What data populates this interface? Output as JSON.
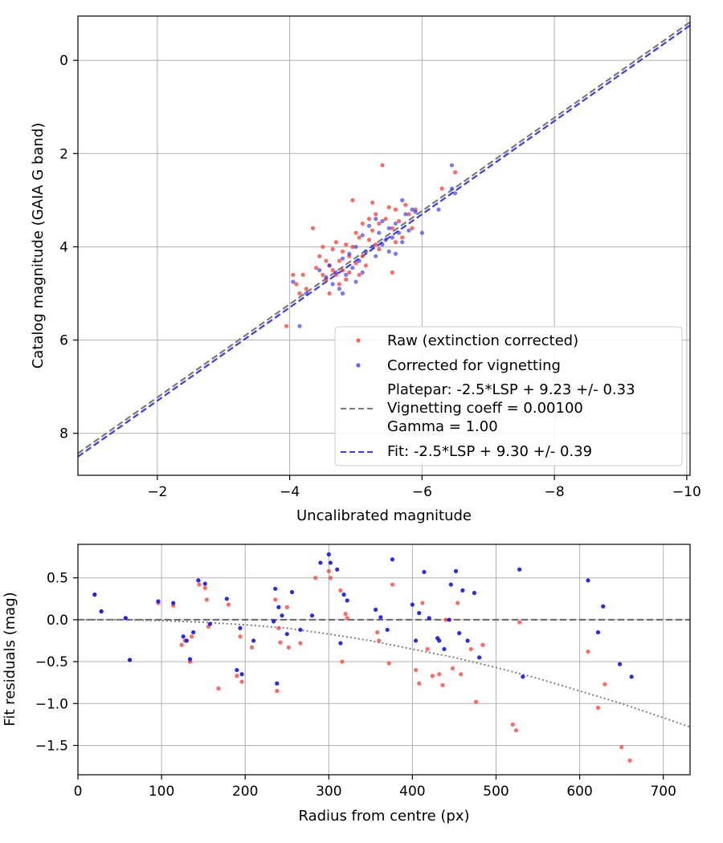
{
  "chart_data": [
    {
      "type": "scatter",
      "xlabel": "Uncalibrated magnitude",
      "ylabel": "Catalog magnitude (GAIA G band)",
      "xlim": [
        -0.8,
        -10.05
      ],
      "ylim": [
        8.9,
        -0.95
      ],
      "xticks": [
        -2,
        -4,
        -6,
        -8,
        -10
      ],
      "xtick_labels": [
        "−2",
        "−4",
        "−6",
        "−8",
        "−10"
      ],
      "yticks": [
        0,
        2,
        4,
        6,
        8
      ],
      "yticks_labels": [
        "0",
        "2",
        "4",
        "6",
        "8"
      ],
      "grid": true,
      "legend_position": "lower-right",
      "colors": {
        "raw": "#ff3b30",
        "corrected": "#2020ff",
        "platepar": "#7a7a7a",
        "fit": "#3a3aff"
      },
      "legend": {
        "raw": "Raw (extinction corrected)",
        "corrected": "Corrected for vignetting",
        "platepar_lines": [
          "Platepar: -2.5*LSP + 9.23 +/- 0.33",
          "Vignetting coeff = 0.00100",
          "Gamma = 1.00"
        ],
        "fit": "Fit: -2.5*LSP + 9.30 +/- 0.39"
      },
      "series": [
        {
          "name": "Platepar",
          "kind": "dashed-line",
          "slope": 1.0,
          "intercept": 9.23
        },
        {
          "name": "Fit",
          "kind": "dashed-line",
          "slope": 1.0,
          "intercept": 9.3
        },
        {
          "name": "Raw (extinction corrected)",
          "kind": "points",
          "x": [
            -3.95,
            -4.05,
            -4.1,
            -4.15,
            -4.2,
            -4.25,
            -4.35,
            -4.4,
            -4.45,
            -4.5,
            -4.5,
            -4.55,
            -4.55,
            -4.6,
            -4.6,
            -4.65,
            -4.65,
            -4.7,
            -4.7,
            -4.75,
            -4.75,
            -4.8,
            -4.8,
            -4.85,
            -4.85,
            -4.9,
            -4.9,
            -4.95,
            -4.95,
            -5.0,
            -5.0,
            -5.05,
            -5.05,
            -5.1,
            -5.1,
            -5.15,
            -5.2,
            -5.2,
            -5.25,
            -5.25,
            -5.3,
            -5.3,
            -5.35,
            -5.35,
            -5.4,
            -5.45,
            -5.5,
            -5.55,
            -5.6,
            -5.6,
            -5.65,
            -5.7,
            -5.75,
            -5.8,
            -5.85,
            -5.9,
            -6.3,
            -6.5,
            -5.55
          ],
          "y": [
            5.7,
            4.6,
            4.8,
            5.0,
            4.6,
            4.9,
            3.6,
            4.45,
            4.2,
            4.0,
            4.6,
            4.7,
            4.3,
            4.4,
            5.0,
            4.05,
            4.5,
            3.9,
            4.6,
            4.3,
            4.8,
            4.1,
            4.5,
            3.95,
            4.7,
            4.2,
            4.55,
            3.0,
            4.0,
            4.35,
            3.7,
            3.8,
            4.6,
            3.5,
            4.2,
            4.4,
            3.4,
            3.85,
            3.05,
            3.65,
            3.3,
            3.95,
            3.5,
            4.05,
            2.25,
            3.4,
            3.15,
            3.6,
            3.9,
            3.2,
            3.45,
            3.8,
            3.1,
            3.3,
            3.6,
            3.2,
            2.75,
            2.4,
            4.55
          ]
        },
        {
          "name": "Corrected for vignetting",
          "kind": "points",
          "x": [
            -4.05,
            -4.15,
            -4.25,
            -4.45,
            -4.55,
            -4.6,
            -4.65,
            -4.7,
            -4.75,
            -4.8,
            -4.8,
            -4.85,
            -4.9,
            -4.95,
            -5.0,
            -5.0,
            -5.05,
            -5.1,
            -5.1,
            -5.15,
            -5.2,
            -5.25,
            -5.3,
            -5.3,
            -5.35,
            -5.4,
            -5.4,
            -5.45,
            -5.5,
            -5.5,
            -5.55,
            -5.6,
            -5.65,
            -5.7,
            -5.75,
            -5.8,
            -5.85,
            -5.9,
            -6.25,
            -6.45,
            -6.45,
            -6.5,
            -5.6,
            -5.7,
            -6.0
          ],
          "y": [
            4.75,
            5.7,
            5.0,
            4.5,
            4.65,
            4.4,
            4.8,
            4.55,
            4.9,
            4.25,
            5.0,
            4.6,
            4.15,
            4.45,
            4.0,
            4.75,
            4.3,
            3.75,
            4.55,
            4.1,
            3.55,
            4.0,
            3.4,
            4.2,
            3.7,
            3.45,
            3.95,
            3.85,
            3.6,
            4.1,
            3.8,
            3.5,
            3.7,
            3.0,
            3.3,
            3.65,
            3.2,
            3.25,
            3.2,
            2.75,
            2.25,
            2.85,
            4.15,
            3.9,
            3.7
          ]
        }
      ]
    },
    {
      "type": "scatter",
      "xlabel": "Radius from centre (px)",
      "ylabel": "Fit residuals (mag)",
      "xlim": [
        0,
        732
      ],
      "ylim": [
        -1.85,
        0.9
      ],
      "xticks": [
        0,
        100,
        200,
        300,
        400,
        500,
        600,
        700
      ],
      "xtick_labels": [
        "0",
        "100",
        "200",
        "300",
        "400",
        "500",
        "600",
        "700"
      ],
      "yticks": [
        0.5,
        0.0,
        -0.5,
        -1.0,
        -1.5
      ],
      "yticks_labels": [
        "0.5",
        "0.0",
        "−0.5",
        "−1.0",
        "−1.5"
      ],
      "grid": true,
      "colors": {
        "raw": "#ff3b30",
        "corrected": "#1414ee",
        "overlap": "#8a1060",
        "zero_line": "#666666",
        "vignetting_curve": "#808080"
      },
      "series": [
        {
          "name": "zero",
          "kind": "dashed-line",
          "y": 0.0
        },
        {
          "name": "vignetting model",
          "kind": "dotted-curve",
          "x": [
            0,
            50,
            100,
            150,
            200,
            250,
            300,
            350,
            400,
            450,
            500,
            550,
            600,
            650,
            700,
            732
          ],
          "y": [
            0.0,
            0.0,
            -0.01,
            -0.03,
            -0.06,
            -0.1,
            -0.17,
            -0.25,
            -0.35,
            -0.45,
            -0.57,
            -0.7,
            -0.85,
            -1.0,
            -1.17,
            -1.28
          ]
        },
        {
          "name": "raw",
          "kind": "points",
          "x": [
            20,
            28,
            57,
            62,
            96,
            114,
            124,
            128,
            134,
            136,
            145,
            152,
            154,
            156,
            168,
            180,
            190,
            194,
            196,
            208,
            236,
            238,
            240,
            242,
            250,
            252,
            266,
            284,
            300,
            302,
            314,
            316,
            320,
            322,
            358,
            360,
            372,
            376,
            404,
            408,
            412,
            418,
            424,
            432,
            436,
            440,
            448,
            454,
            458,
            470,
            476,
            484,
            520,
            524,
            528,
            610,
            622,
            630,
            650,
            660
          ],
          "y": [
            0.3,
            0.1,
            0.02,
            -0.48,
            0.2,
            0.17,
            -0.3,
            -0.25,
            -0.5,
            -0.2,
            0.42,
            0.38,
            0.24,
            -0.08,
            -0.82,
            0.18,
            -0.67,
            -0.2,
            -0.74,
            -0.33,
            0.24,
            -0.85,
            -0.1,
            -0.27,
            0.15,
            -0.33,
            -0.28,
            0.5,
            0.58,
            0.5,
            0.35,
            -0.5,
            0.07,
            0.02,
            -0.15,
            -0.25,
            -0.52,
            0.42,
            -0.6,
            -0.76,
            0.2,
            -0.35,
            -0.67,
            -0.65,
            -0.78,
            0.0,
            -0.58,
            0.2,
            -0.65,
            -0.35,
            -0.98,
            -0.3,
            -1.25,
            -1.32,
            -0.03,
            -0.38,
            -1.05,
            -0.77,
            -1.52,
            -1.68
          ]
        },
        {
          "name": "corrected",
          "kind": "points",
          "x": [
            20,
            28,
            57,
            62,
            96,
            114,
            126,
            130,
            134,
            138,
            144,
            152,
            158,
            178,
            190,
            194,
            196,
            210,
            234,
            236,
            238,
            240,
            244,
            250,
            256,
            266,
            280,
            290,
            300,
            302,
            310,
            314,
            318,
            322,
            356,
            362,
            370,
            376,
            400,
            404,
            408,
            414,
            420,
            430,
            432,
            438,
            444,
            446,
            452,
            456,
            460,
            466,
            474,
            480,
            528,
            532,
            610,
            622,
            628,
            648,
            662
          ],
          "y": [
            0.3,
            0.1,
            0.02,
            -0.48,
            0.22,
            0.2,
            -0.2,
            -0.25,
            -0.47,
            -0.15,
            0.47,
            0.43,
            -0.05,
            0.25,
            -0.6,
            -0.1,
            -0.65,
            -0.25,
            -0.02,
            0.37,
            -0.76,
            0.15,
            0.05,
            -0.17,
            0.33,
            -0.12,
            0.05,
            0.68,
            0.78,
            0.68,
            0.6,
            -0.28,
            0.3,
            0.23,
            0.12,
            0.03,
            -0.12,
            0.72,
            0.18,
            -0.25,
            0.08,
            0.57,
            0.02,
            -0.22,
            -0.25,
            -0.35,
            0.0,
            0.42,
            0.58,
            -0.16,
            0.35,
            -0.25,
            0.32,
            -0.45,
            0.6,
            -0.68,
            0.47,
            -0.15,
            0.16,
            -0.53,
            -0.68
          ]
        }
      ]
    }
  ]
}
